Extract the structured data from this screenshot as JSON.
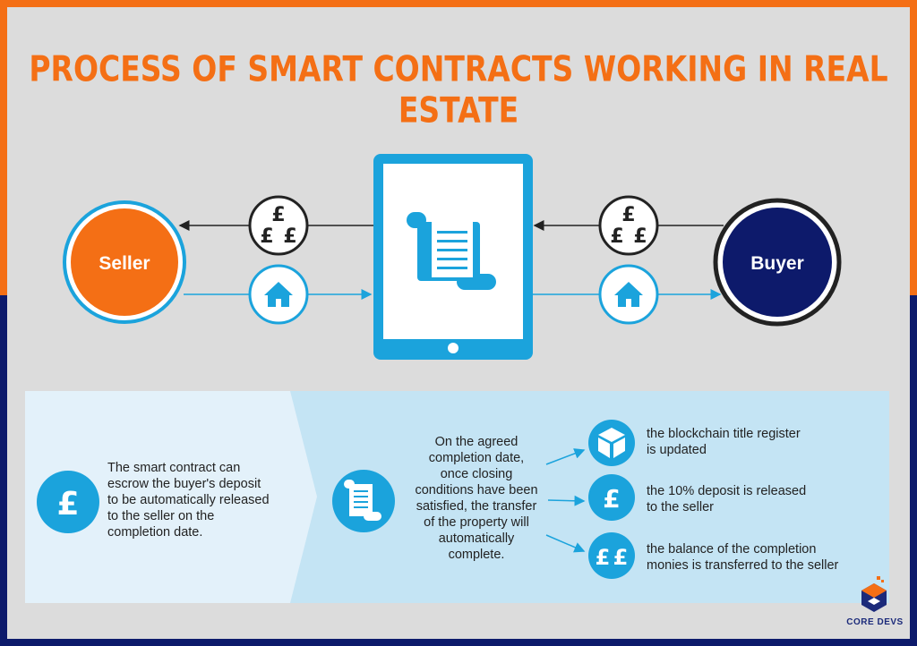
{
  "title": "PROCESS OF SMART CONTRACTS WORKING IN REAL ESTATE",
  "seller": {
    "label": "Seller",
    "color": "#f46f15"
  },
  "buyer": {
    "label": "Buyer",
    "color": "#0d1a6b"
  },
  "currency_symbol": "£",
  "escrow_text": [
    "The smart contract can",
    "escrow the buyer's deposit",
    "to be automatically released",
    "to the seller on the",
    "completion date."
  ],
  "completion_text": [
    "On the agreed",
    "completion date,",
    "once closing",
    "conditions have been",
    "satisfied, the transfer",
    "of the property will",
    "automatically",
    "complete."
  ],
  "outcomes": [
    {
      "icon": "cube-icon",
      "lines": [
        "the blockchain title register",
        "is updated"
      ]
    },
    {
      "icon": "pound-icon",
      "lines": [
        "the 10% deposit is released",
        "to the seller"
      ]
    },
    {
      "icon": "double-pound-icon",
      "lines": [
        "the balance of the completion",
        "monies is transferred to the seller"
      ]
    }
  ],
  "logo": {
    "text": "CORE DEVS"
  },
  "colors": {
    "accent_blue": "#1ba3dc",
    "orange": "#f46f15",
    "navy": "#0d1a6b",
    "panel_light": "#e3f1fa",
    "panel": "#c4e4f4"
  }
}
